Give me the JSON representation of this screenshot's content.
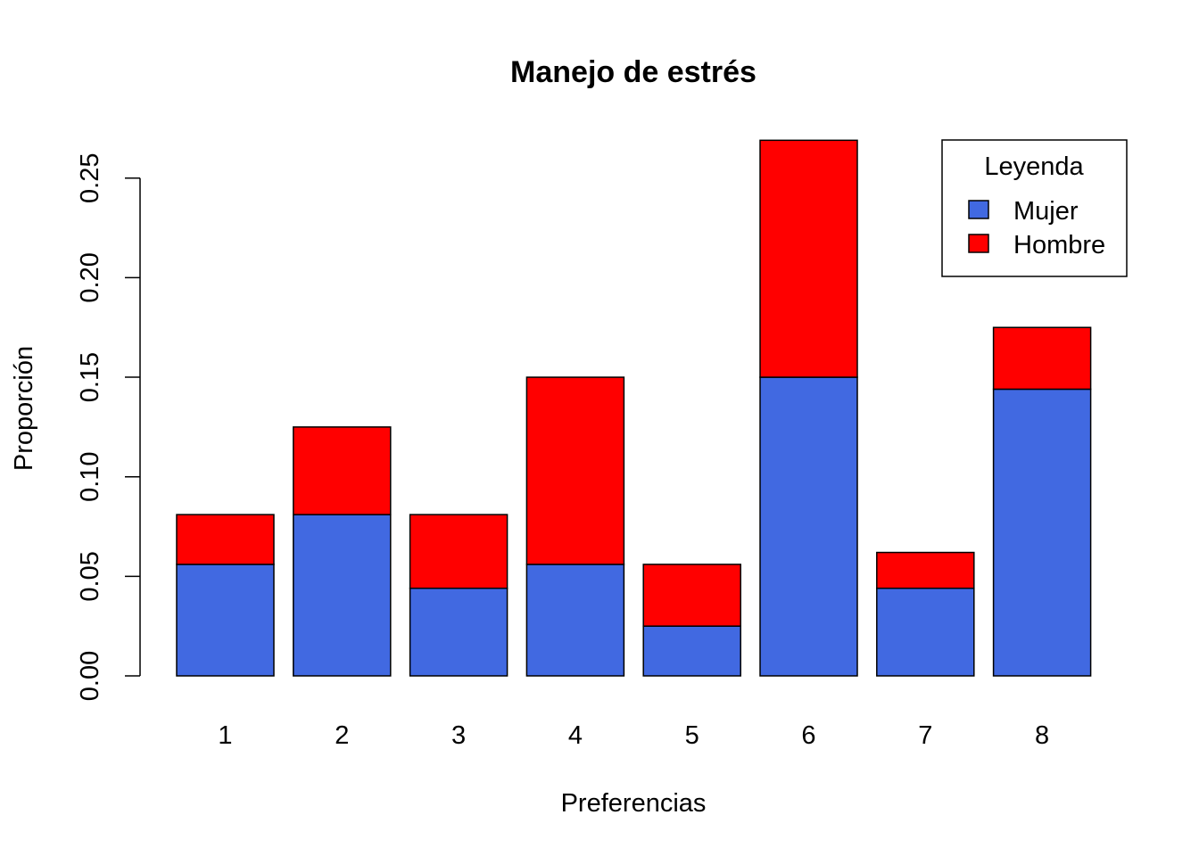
{
  "chart_data": {
    "type": "bar",
    "stacked": true,
    "title": "Manejo de estrés",
    "xlabel": "Preferencias",
    "ylabel": "Proporción",
    "categories": [
      "1",
      "2",
      "3",
      "4",
      "5",
      "6",
      "7",
      "8"
    ],
    "series": [
      {
        "name": "Mujer",
        "color": "#4169E1",
        "values": [
          0.056,
          0.081,
          0.044,
          0.056,
          0.025,
          0.15,
          0.044,
          0.144
        ]
      },
      {
        "name": "Hombre",
        "color": "#FF0000",
        "values": [
          0.025,
          0.044,
          0.037,
          0.094,
          0.031,
          0.119,
          0.018,
          0.031
        ]
      }
    ],
    "ylim": [
      0,
      0.27
    ],
    "yticks": [
      "0.00",
      "0.05",
      "0.10",
      "0.15",
      "0.20",
      "0.25"
    ],
    "grid": false,
    "legend": {
      "title": "Leyenda",
      "position": "top-right"
    }
  }
}
